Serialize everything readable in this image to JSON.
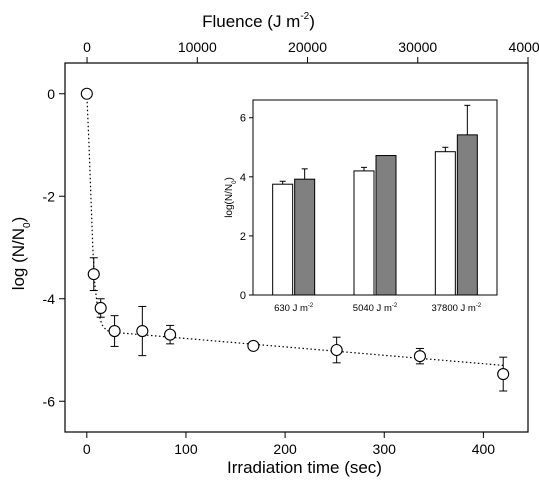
{
  "chart_data": [
    {
      "type": "scatter",
      "xlabel": "Irradiation time (sec)",
      "x2label": {
        "main": "Fluence (J m",
        "sup": "-2",
        "close": ")"
      },
      "ylabel": {
        "main": "log (N/N",
        "sub": "0",
        "close": ")"
      },
      "xlim": [
        -22,
        445
      ],
      "ylim": [
        -6.6,
        0.6
      ],
      "x2lim": [
        -2000,
        40000
      ],
      "xticks": [
        0,
        100,
        200,
        300,
        400
      ],
      "x2ticks": [
        0,
        10000,
        20000,
        30000,
        40000
      ],
      "yticks": [
        0,
        -2,
        -4,
        -6
      ],
      "series": [
        {
          "points": [
            {
              "x": 0,
              "y": 0.0,
              "err": 0.0
            },
            {
              "x": 7,
              "y": -3.52,
              "err": 0.32
            },
            {
              "x": 14,
              "y": -4.18,
              "err": 0.18
            },
            {
              "x": 28,
              "y": -4.63,
              "err": 0.3
            },
            {
              "x": 56,
              "y": -4.63,
              "err": 0.48
            },
            {
              "x": 84,
              "y": -4.7,
              "err": 0.18
            },
            {
              "x": 168,
              "y": -4.92,
              "err": 0.08
            },
            {
              "x": 252,
              "y": -5.0,
              "err": 0.25
            },
            {
              "x": 336,
              "y": -5.12,
              "err": 0.15
            },
            {
              "x": 420,
              "y": -5.47,
              "err": 0.33
            }
          ]
        }
      ],
      "fit_line": [
        {
          "x": 0,
          "y": 0.0
        },
        {
          "x": 2,
          "y": -0.9
        },
        {
          "x": 4,
          "y": -1.95
        },
        {
          "x": 6,
          "y": -3.0
        },
        {
          "x": 8,
          "y": -3.7
        },
        {
          "x": 11,
          "y": -4.2
        },
        {
          "x": 15,
          "y": -4.5
        },
        {
          "x": 20,
          "y": -4.62
        },
        {
          "x": 30,
          "y": -4.66
        },
        {
          "x": 420,
          "y": -5.3
        }
      ],
      "grid": false
    },
    {
      "type": "bar",
      "ylabel": {
        "main": "log(N/N",
        "sub": "0",
        "close": ")"
      },
      "ylim": [
        0,
        6.6
      ],
      "yticks": [
        0,
        2,
        4,
        6
      ],
      "categories": [
        {
          "main": "630 J m",
          "sup": "-2"
        },
        {
          "main": "5040 J m",
          "sup": "-2"
        },
        {
          "main": "37800 J m",
          "sup": "-2"
        }
      ],
      "series": [
        {
          "color": "#ffffff",
          "values": [
            3.75,
            4.2,
            4.85
          ],
          "errors": [
            0.1,
            0.12,
            0.15
          ]
        },
        {
          "color": "#808080",
          "values": [
            3.92,
            4.72,
            5.42
          ],
          "errors": [
            0.35,
            0.0,
            1.0
          ]
        }
      ]
    }
  ]
}
